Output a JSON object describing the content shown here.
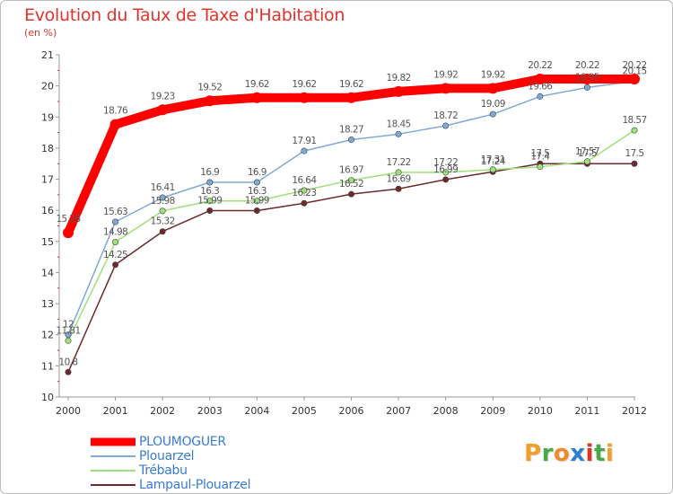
{
  "header": {
    "title": "Evolution du Taux de Taxe d'Habitation",
    "subtitle": "(en %)"
  },
  "logo": {
    "letters": [
      "P",
      "r",
      "o",
      "x",
      "i",
      "t",
      "i"
    ],
    "colors": [
      "#f0a12a",
      "#4aa84a",
      "#f08a2a",
      "#2f7fd0",
      "#e0342b",
      "#4aa84a",
      "#f0a12a"
    ]
  },
  "colors": {
    "title": "#e0342b",
    "label_text": "#3a7bd5",
    "axis": "#999999"
  },
  "chart_data": {
    "type": "line",
    "title": "Evolution du Taux de Taxe d'Habitation",
    "subtitle": "(en %)",
    "xlabel": "",
    "ylabel": "",
    "x": [
      "2000",
      "2001",
      "2002",
      "2003",
      "2004",
      "2005",
      "2006",
      "2007",
      "2008",
      "2009",
      "2010",
      "2011",
      "2012"
    ],
    "ylim": [
      10,
      21
    ],
    "yticks": [
      10,
      11,
      12,
      13,
      14,
      15,
      16,
      17,
      18,
      19,
      20,
      21
    ],
    "grid": false,
    "legend_position": "bottom-left",
    "series": [
      {
        "name": "PLOUMOGUER",
        "color": "#ff0000",
        "values": [
          15.28,
          18.76,
          19.23,
          19.52,
          19.62,
          19.62,
          19.62,
          19.82,
          19.92,
          19.92,
          20.22,
          20.22,
          20.22
        ]
      },
      {
        "name": "Plouarzel",
        "color": "#7fa9d6",
        "values": [
          12,
          15.63,
          16.41,
          16.9,
          16.9,
          17.91,
          18.27,
          18.45,
          18.72,
          19.09,
          19.66,
          19.95,
          20.15
        ]
      },
      {
        "name": "Trébabu",
        "color": "#9ee07a",
        "values": [
          11.81,
          14.98,
          15.98,
          16.3,
          16.3,
          16.64,
          16.97,
          17.22,
          17.22,
          17.31,
          17.4,
          17.57,
          18.57
        ]
      },
      {
        "name": "Lampaul-Plouarzel",
        "color": "#6e2a2a",
        "values": [
          10.8,
          14.25,
          15.32,
          15.99,
          15.99,
          16.23,
          16.52,
          16.69,
          16.99,
          17.24,
          17.5,
          17.5,
          17.5
        ]
      }
    ]
  }
}
